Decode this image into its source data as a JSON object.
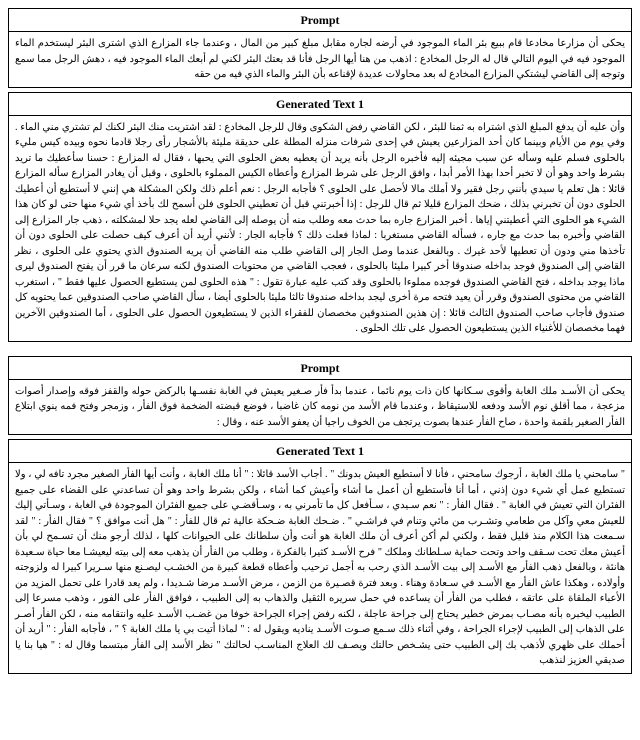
{
  "colors": {
    "text": "#000000",
    "background": "#ffffff",
    "border": "#000000"
  },
  "typography": {
    "header_fontsize": 12,
    "header_weight": "bold",
    "body_fontsize": 10,
    "line_height": 1.55,
    "direction": "rtl",
    "align": "justify",
    "font_family": "Times New Roman"
  },
  "blocks": [
    {
      "header": "Prompt",
      "body": "يحكى أن مزارعا مخادعا قام ببيع بئر الماء الموجود في أرضه لجاره مقابل مبلغ كبير من المال ، وعندما جاء المزارع الذي اشترى البئر ليستخدم الماء الموجود فيه في اليوم التالي قال له الرجل المخادع : اذهب من هنا أيها الرجل فأنا قد بعتك البئر لكني لم أبعك الماء الموجود فيه ، دهش الرجل مما سمع وتوجه إلى القاضي ليشتكي المزارع المخادع له بعد محاولات عديدة لإقناعه بأن البئر والماء الذي فيه من حقه"
    },
    {
      "header": "Generated Text 1",
      "body": "وأن عليه أن يدفع المبلغ الذي اشتراه به ثمنا للبئر ، لكن القاضي رفض الشكوى وقال للرجل المخادع : لقد اشتريت منك البئر لكنك لم تشتري مني الماء . وفي يوم من الأيام وبينما كان أحد المزارعين يعيش في إحدى شرفات منزله المطلة على حديقة مليئة بالأشجار رأى رجلا قادما نحوه وبيده كيس مليء بالحلوى فسلم عليه وسأله عن سبب مجيئه إليه فأخبره الرجل بأنه يريد أن يعطيه بعض الحلوى التي يحبها ، فقال له المزارع : حسنا سأعطيك ما تريد بشرط واحد وهو أن لا تخبر أحدا بهذا الأمر أبدا ، وافق الرجل على شرط المزارع وأعطاه الكيس المملوء بالحلوى ، وقبل أن يغادر المزارع سأله المزارع قائلا : هل تعلم يا سيدي بأنني رجل فقير ولا أملك مالا لأحصل على الحلوى ؟ فأجابه الرجل : نعم أعلم ذلك ولكن المشكلة هي إنني لا أستطيع أن أعطيك الحلوى دون أن تخبرني بذلك ، ضحك المزارع قليلا ثم قال للرجل : إذا أخبرتني قبل أن تعطيني الحلوى فلن أسمح لك بأخذ أي شيء منها حتى لو كان هذا الشيء هو الحلوى التي أعطيتني إياها . أخبر المزارع جاره بما حدث معه وطلب منه أن يوصله إلى القاضي لعله يجد حلا لمشكلته ، ذهب جار المزارع إلى القاضي وأخبره بما حدث مع جاره ، فسأله القاضي مستغربا : لماذا فعلت ذلك ؟ فأجابه الجار : لأنني أريد أن أعرف كيف حصلت على الحلوى دون أن تأخذها مني ودون أن تعطيها لأحد غيرك . وبالفعل عندما وصل الجار إلى القاضي طلب منه القاضي أن يريه الصندوق الذي يحتوي على الحلوى ، نظر القاضي إلى الصندوق فوجد بداخله صندوقا أخر كبيرا مليئا بالحلوى ، فعجب القاضي من محتويات الصندوق لكنه سرعان ما قرر أن يفتح الصندوق ليرى ماذا يوجد بداخله ، فتح القاضي الصندوق فوجده مملوءا بالحلوى وقد كتب عليه عبارة تقول : \" هذه الحلوى لمن يستطيع الحصول عليها فقط \" ، استغرب القاضي من محتوى الصندوق وقرر أن يعيد فتحه مرة أخرى ليجد بداخله صندوقا ثالثا مليئا بالحلوى أيضا ، سأل القاضي صاحب الصندوقين عما يحتويه كل صندوق فأجاب صاحب الصندوق الثالث قائلا : إن هذين الصندوقين مخصصان للفقراء الذين لا يستطيعون الحصول على الحلوى ، أما الصندوقين الآخرين فهما مخصصان للأغنياء الذين يستطيعون الحصول على تلك الحلوى ."
    },
    {
      "header": "Prompt",
      "body": "يحكى أن الأسـد ملك الغابة وأقوى سـكانها كان ذات يوم نائما ، عندما بدأ فأر صـغير يعيش في الغابة نفسـها بالركض حوله والقفز فوقه وإصدار أصوات مزعجة ، مما أقلق نوم الأسد ودفعه للاستيقاظ ، وعندما قام الأسد من نومه كان غاضبا ، فوضع قبضته الضخمة فوق الفأر ، وزمجر وفتح فمه ينوي ابتلاع الفأر الصغير بلقمة واحدة ، صاح الفأر عندها بصوت يرتجف من الخوف راجيا أن يعفو الأسد عنه ، وقال :"
    },
    {
      "header": "Generated Text 1",
      "body": "\" سامحني يا ملك الغابة ، أرجوك سامحني ، فأنا لا أستطيع العيش بدونك \" . أجاب الأسد قائلا : \" أنا ملك الغابة ، وأنت أيها الفأر الصغير مجرد تافه لي ، ولا تستطيع عمل أي شيء دون إذني ، أما أنا فأستطيع أن أعمل ما أشاء وأعيش كما أشاء ، ولكن بشرط واحد وهو أن تساعدني على القضاء على جميع الفئران التي تعيش في الغابة \" . فقال الفأر : \" نعم سـيدي ، سـأفعل كل ما تأمرني به ، وسـأقضـي على جميع الفئران الموجودة في الغابة ، وسـأتي إليك للعيش معي وآكل من طعامي وتشـرب من مائي وتنام في فراشـي \" . ضـحك الغابة ضـحكة عالية ثم قال للفأر : \" هل أنت موافق ؟ \" فقال الفأر : \" لقد سـمعت هذا الكلام منذ قليل فقط ، ولكني لم أكن أعرف أن ملك الغابة هو أنت وأن سلطانك على الحيوانات كلها ، لذلك أرجو منك أن تسـمح لي بأن أعيش معك تحت سـقف واحد وتحت حماية سـلطانك وملكك \" فرح الأسـد كثيرا بالفكرة ، وطلب من الفأر أن يذهب معه إلى بيته ليعيشـا معا حياة سـعيدة هانئة ، وبالفعل ذهب الفأر مع الأسـد إلى بيت الأسـد الذي رحب به أجمل ترحيب وأعطاه قطعة كبيرة من الخشـب ليصـنع منها سـريرا كبيرا له ولزوجته وأولاده ، وهكذا عاش الفأر مع الأسـد في سـعادة وهناء . وبعد فترة قصـيرة من الزمن ، مرض الأسـد مرضا شـديدا ، ولم يعد قادرا على تحمل المزيد من الأعباء الملقاة على عاتقه ، فطلب من الفأر أن يساعده في حمل سريره الثقيل والذهاب به إلى الطبيب ، فوافق الفأر على الفور ، وذهب مسرعا إلى الطبيب ليخبره بأنه مصـاب بمرض خطير يحتاج إلى جراحة عاجلة ، لكنه رفض إجراء الجراحة خوفا من غضـب الأسـد عليه وانتقامه منه ، لكن الفأر أصـر على الذهاب إلى الطبيب لإجراء الجراحة ، وفي أثناء ذلك سـمع صـوت الأسـد يناديه ويقول له : \" لماذا أتيت بي يا ملك الغابة ؟ \" ، فأجابه الفأر : \" أريد أن أحملك على ظهري لأذهب بك إلى الطبيب حتى يشـخص حالتك ويصـف لك العلاج المناسـب لحالتك \" نظر الأسد إلى الفأر مبتسما وقال له : \" هيا بنا يا صديقي العزيز لنذهب"
    }
  ]
}
